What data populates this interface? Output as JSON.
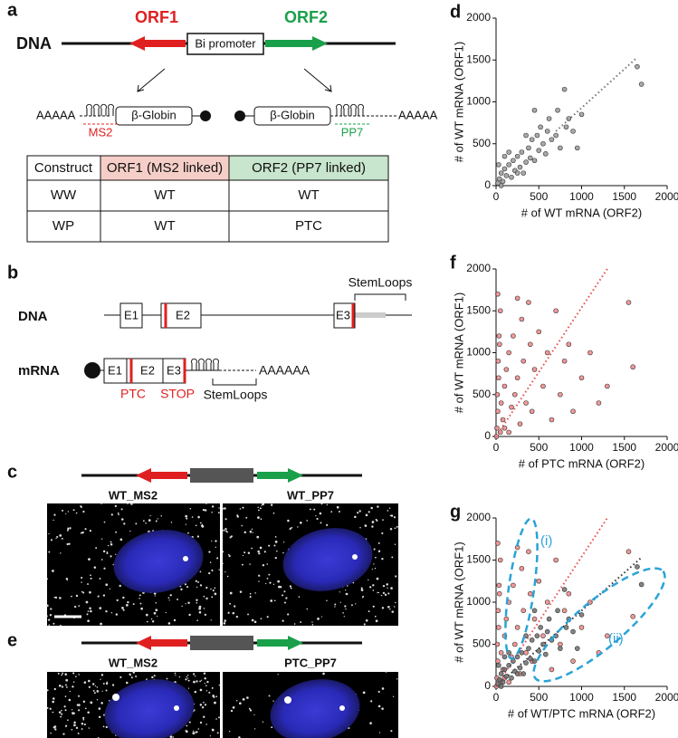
{
  "panels": {
    "a": {
      "label": "a",
      "dna": "DNA",
      "orf1": "ORF1",
      "orf2": "ORF2",
      "promoter": "Bi promoter",
      "polyA_left": "AAAAA",
      "polyA_right": "AAAAA",
      "globin_left": "β-Globin",
      "globin_right": "β-Globin",
      "ms2": "MS2",
      "pp7": "PP7",
      "table": {
        "header": [
          "Construct",
          "ORF1 (MS2 linked)",
          "ORF2 (PP7 linked)"
        ],
        "rows": [
          [
            "WW",
            "WT",
            "WT"
          ],
          [
            "WP",
            "WT",
            "PTC"
          ]
        ]
      }
    },
    "b": {
      "label": "b",
      "dna": "DNA",
      "mrna": "mRNA",
      "exons_dna": [
        "E1",
        "E2",
        "E3"
      ],
      "exons_mrna": [
        "E1",
        "E2",
        "E3"
      ],
      "stemloops_dna": "StemLoops",
      "stemloops_mrna": "StemLoops",
      "polyA": "AAAAAA",
      "ptc": "PTC",
      "stop": "STOP"
    },
    "c": {
      "label": "c",
      "images": [
        "WT_MS2",
        "WT_PP7"
      ]
    },
    "e": {
      "label": "e",
      "images": [
        "WT_MS2",
        "PTC_PP7"
      ]
    }
  },
  "chart_data": [
    {
      "type": "scatter",
      "panel_label": "d",
      "xlabel": "# of WT mRNA (ORF2)",
      "ylabel": "# of WT mRNA (ORF1)",
      "xlim": [
        0,
        2000
      ],
      "ylim": [
        0,
        2000
      ],
      "xticks": [
        0,
        500,
        1000,
        1500,
        2000
      ],
      "yticks": [
        0,
        500,
        1000,
        1500,
        2000
      ],
      "series": [
        {
          "color": "#9a9a9a",
          "x": [
            20,
            40,
            60,
            80,
            100,
            120,
            150,
            180,
            200,
            220,
            250,
            280,
            300,
            320,
            350,
            380,
            400,
            420,
            450,
            480,
            500,
            520,
            550,
            580,
            600,
            620,
            650,
            700,
            720,
            750,
            800,
            820,
            850,
            900,
            950,
            1000,
            60,
            30,
            150,
            250,
            1650,
            1700,
            100,
            350,
            450
          ],
          "y": [
            30,
            80,
            150,
            50,
            200,
            120,
            250,
            100,
            300,
            180,
            350,
            220,
            400,
            150,
            280,
            450,
            330,
            550,
            300,
            600,
            420,
            700,
            500,
            380,
            650,
            800,
            550,
            600,
            900,
            450,
            1150,
            700,
            800,
            650,
            450,
            850,
            0,
            250,
            400,
            150,
            1420,
            1210,
            350,
            600,
            900
          ]
        }
      ],
      "fit_lines": [
        {
          "color": "#777777",
          "x": [
            700,
            1650
          ],
          "y": [
            650,
            1530
          ]
        }
      ]
    },
    {
      "type": "scatter",
      "panel_label": "f",
      "xlabel": "# of PTC mRNA (ORF2)",
      "ylabel": "# of WT mRNA (ORF1)",
      "xlim": [
        0,
        2000
      ],
      "ylim": [
        0,
        2000
      ],
      "xticks": [
        0,
        500,
        1000,
        1500,
        2000
      ],
      "yticks": [
        0,
        500,
        1000,
        1500,
        2000
      ],
      "series": [
        {
          "color": "#f08585",
          "x": [
            10,
            20,
            15,
            30,
            25,
            40,
            35,
            50,
            20,
            60,
            80,
            100,
            120,
            150,
            180,
            200,
            220,
            250,
            280,
            300,
            320,
            350,
            380,
            400,
            420,
            450,
            500,
            550,
            600,
            650,
            700,
            750,
            800,
            850,
            900,
            1000,
            1100,
            1200,
            1300,
            1550,
            1600,
            250,
            50,
            100,
            150,
            5
          ],
          "y": [
            100,
            300,
            500,
            700,
            900,
            1100,
            1200,
            1500,
            1700,
            400,
            200,
            600,
            800,
            1000,
            350,
            1200,
            500,
            700,
            150,
            1400,
            900,
            400,
            1600,
            1100,
            300,
            800,
            1250,
            600,
            1000,
            200,
            1500,
            500,
            900,
            1100,
            300,
            700,
            1000,
            400,
            600,
            1600,
            830,
            1650,
            50,
            100,
            50,
            0
          ]
        }
      ],
      "fit_lines": [
        {
          "color": "#e84a4a",
          "x": [
            0,
            1300
          ],
          "y": [
            0,
            2000
          ]
        }
      ]
    },
    {
      "type": "scatter",
      "panel_label": "g",
      "xlabel": "# of WT/PTC mRNA (ORF2)",
      "ylabel": "# of WT mRNA (ORF1)",
      "xlim": [
        0,
        2000
      ],
      "ylim": [
        0,
        2000
      ],
      "xticks": [
        0,
        500,
        1000,
        1500,
        2000
      ],
      "yticks": [
        0,
        500,
        1000,
        1500,
        2000
      ],
      "series": [
        {
          "color": "#f08585",
          "x": [
            10,
            20,
            15,
            30,
            25,
            40,
            35,
            50,
            20,
            60,
            80,
            100,
            120,
            150,
            180,
            200,
            220,
            250,
            280,
            300,
            320,
            350,
            380,
            400,
            420,
            450,
            500,
            550,
            600,
            650,
            700,
            750,
            800,
            850,
            900,
            1000,
            1100,
            1200,
            1300,
            1550,
            1600,
            250,
            50,
            100,
            150,
            5
          ],
          "y": [
            100,
            300,
            500,
            700,
            900,
            1100,
            1200,
            1500,
            1700,
            400,
            200,
            600,
            800,
            1000,
            350,
            1200,
            500,
            700,
            150,
            1400,
            900,
            400,
            1600,
            1100,
            300,
            800,
            1250,
            600,
            1000,
            200,
            1500,
            500,
            900,
            1100,
            300,
            700,
            1000,
            400,
            600,
            1600,
            830,
            1650,
            50,
            100,
            50,
            0
          ]
        },
        {
          "color": "#6e6e6e",
          "x": [
            20,
            40,
            60,
            80,
            100,
            120,
            150,
            180,
            200,
            220,
            250,
            280,
            300,
            320,
            350,
            380,
            400,
            420,
            450,
            480,
            500,
            520,
            550,
            580,
            600,
            620,
            650,
            700,
            720,
            750,
            800,
            820,
            850,
            900,
            950,
            1000,
            60,
            30,
            150,
            250,
            1650,
            1700,
            100,
            350,
            450
          ],
          "y": [
            30,
            80,
            150,
            50,
            200,
            120,
            250,
            100,
            300,
            180,
            350,
            220,
            400,
            150,
            280,
            450,
            330,
            550,
            300,
            600,
            420,
            700,
            500,
            380,
            650,
            800,
            550,
            600,
            900,
            450,
            1150,
            700,
            800,
            650,
            450,
            850,
            0,
            250,
            400,
            150,
            1420,
            1210,
            350,
            600,
            900
          ]
        }
      ],
      "fit_lines": [
        {
          "color": "#e84a4a",
          "x": [
            0,
            1300
          ],
          "y": [
            0,
            2000
          ]
        },
        {
          "color": "#333333",
          "x": [
            0,
            1700
          ],
          "y": [
            0,
            1530
          ]
        }
      ],
      "annotations": [
        "(i)",
        "(ii)"
      ]
    }
  ]
}
